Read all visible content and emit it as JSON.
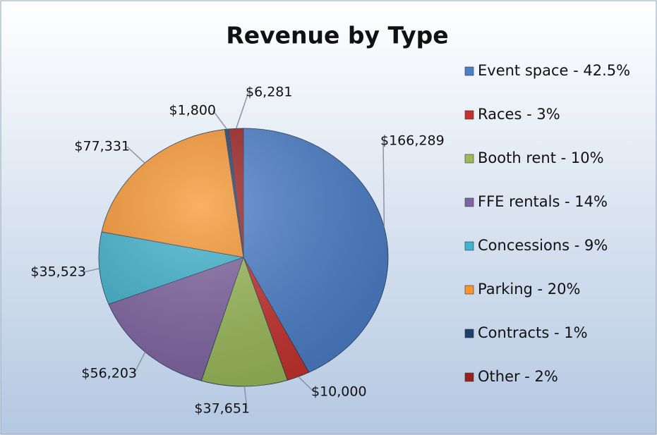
{
  "chart_data": {
    "type": "pie",
    "title": "Revenue by Type",
    "categories": [
      "Event space - 42.5%",
      "Races - 3%",
      "Booth rent - 10%",
      "FFE rentals - 14%",
      "Concessions - 9%",
      "Parking - 20%",
      "Contracts - 1%",
      "Other - 2%"
    ],
    "values": [
      166289,
      10000,
      37651,
      56203,
      35523,
      77331,
      1800,
      6281
    ],
    "value_labels": [
      "$166,289",
      "$10,000",
      "$37,651",
      "$56,203",
      "$35,523",
      "$77,331",
      "$1,800",
      "$6,281"
    ],
    "colors": [
      "#4a7fca",
      "#c8302c",
      "#9bbb59",
      "#8064a2",
      "#3fb3cf",
      "#f7962f",
      "#1f3f6d",
      "#9b2020"
    ],
    "legend": "right"
  }
}
